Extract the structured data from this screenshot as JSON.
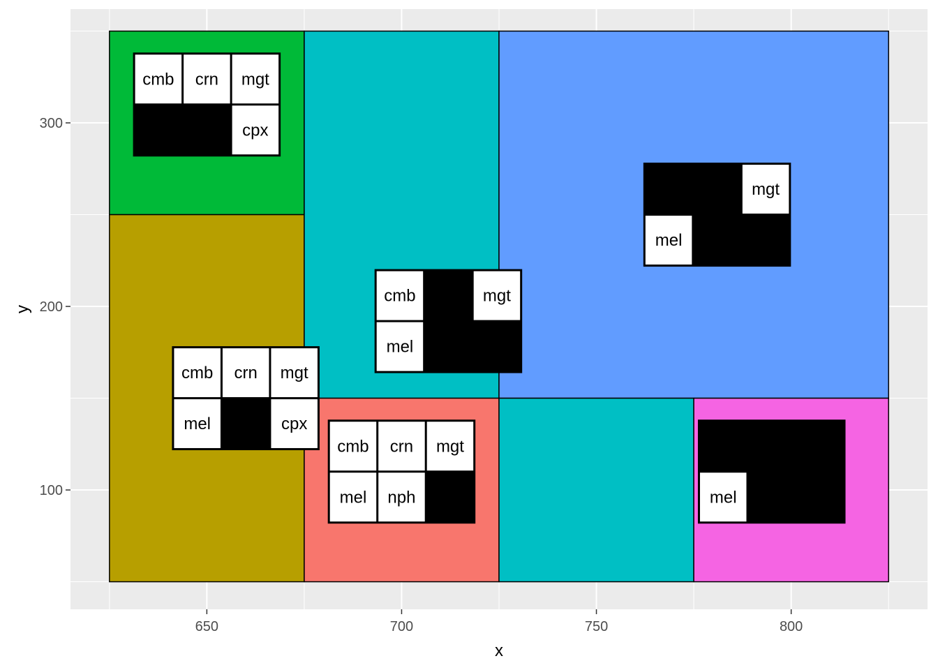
{
  "chart_data": {
    "type": "heatmap",
    "title": "",
    "xlabel": "x",
    "ylabel": "y",
    "xlim": [
      615,
      835
    ],
    "ylim": [
      35,
      362
    ],
    "x_ticks": [
      650,
      700,
      750,
      800
    ],
    "y_ticks": [
      100,
      200,
      300
    ],
    "x_tick_labels": [
      "650",
      "700",
      "750",
      "800"
    ],
    "y_tick_labels": [
      "100",
      "200",
      "300"
    ],
    "grid": true,
    "legend": "none",
    "panel_background": "#ebebeb",
    "grid_color": "#ffffff",
    "regions": [
      {
        "xmin": 625,
        "xmax": 675,
        "ymin": 250,
        "ymax": 350,
        "fill": "#00ba38"
      },
      {
        "xmin": 625,
        "xmax": 675,
        "ymin": 50,
        "ymax": 250,
        "fill": "#b79f00"
      },
      {
        "xmin": 675,
        "xmax": 725,
        "ymin": 150,
        "ymax": 350,
        "fill": "#00bfc4"
      },
      {
        "xmin": 675,
        "xmax": 725,
        "ymin": 50,
        "ymax": 150,
        "fill": "#f8766d"
      },
      {
        "xmin": 725,
        "xmax": 825,
        "ymin": 150,
        "ymax": 350,
        "fill": "#619cff"
      },
      {
        "xmin": 725,
        "xmax": 775,
        "ymin": 50,
        "ymax": 150,
        "fill": "#00bfc4"
      },
      {
        "xmin": 775,
        "xmax": 825,
        "ymin": 50,
        "ymax": 150,
        "fill": "#f564e3"
      }
    ],
    "tables": [
      {
        "x": 650,
        "y": 310,
        "top": [
          "cmb",
          "crn",
          "mgt"
        ],
        "bottom": [
          "",
          "",
          "cpx"
        ]
      },
      {
        "x": 660,
        "y": 150,
        "top": [
          "cmb",
          "crn",
          "mgt"
        ],
        "bottom": [
          "mel",
          "",
          "cpx"
        ]
      },
      {
        "x": 712,
        "y": 192,
        "top": [
          "cmb",
          "",
          "mgt"
        ],
        "bottom": [
          "mel",
          "",
          ""
        ]
      },
      {
        "x": 700,
        "y": 110,
        "top": [
          "cmb",
          "crn",
          "mgt"
        ],
        "bottom": [
          "mel",
          "nph",
          ""
        ]
      },
      {
        "x": 781,
        "y": 250,
        "top": [
          "",
          "",
          "mgt"
        ],
        "bottom": [
          "mel",
          "",
          ""
        ]
      },
      {
        "x": 795,
        "y": 110,
        "top": [
          "",
          "",
          ""
        ],
        "bottom": [
          "mel",
          "",
          ""
        ]
      }
    ]
  }
}
